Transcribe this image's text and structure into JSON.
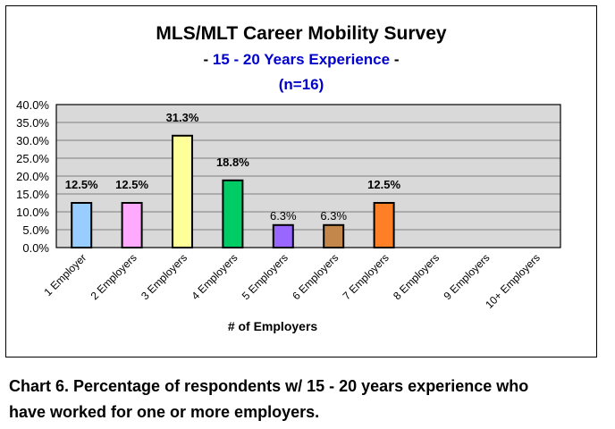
{
  "chart_data": {
    "type": "bar",
    "title": "MLS/MLT Career Mobility Survey",
    "subtitle_prefix": "-",
    "subtitle": "15 - 20 Years Experience",
    "subtitle_suffix": "-",
    "subtitle2": "(n=16)",
    "xlabel": "# of Employers",
    "ylabel": "",
    "categories": [
      "1 Employer",
      "2 Employers",
      "3 Employers",
      "4 Employers",
      "5 Employers",
      "6 Employers",
      "7 Employers",
      "8 Employers",
      "9 Employers",
      "10+ Employers"
    ],
    "values": [
      12.5,
      12.5,
      31.3,
      18.8,
      6.3,
      6.3,
      12.5,
      0,
      0,
      0
    ],
    "data_labels": [
      "12.5%",
      "12.5%",
      "31.3%",
      "18.8%",
      "6.3%",
      "6.3%",
      "12.5%",
      "",
      "",
      ""
    ],
    "colors": [
      "#99ccff",
      "#ffaaff",
      "#ffff99",
      "#00cc66",
      "#9966ff",
      "#c4874b",
      "#ff7f27",
      "#cccccc",
      "#cccccc",
      "#cccccc"
    ],
    "ylim": [
      0,
      40
    ],
    "yticks": [
      "0.0%",
      "5.0%",
      "10.0%",
      "15.0%",
      "20.0%",
      "25.0%",
      "30.0%",
      "35.0%",
      "40.0%"
    ],
    "ytick_values": [
      0,
      5,
      10,
      15,
      20,
      25,
      30,
      35,
      40
    ],
    "grid": true,
    "legend": "none",
    "plot_background": "#d9d9d9"
  },
  "caption": {
    "line1": "Chart 6. Percentage of respondents w/ 15 - 20 years experience who",
    "line2": "have worked for one or more employers."
  }
}
